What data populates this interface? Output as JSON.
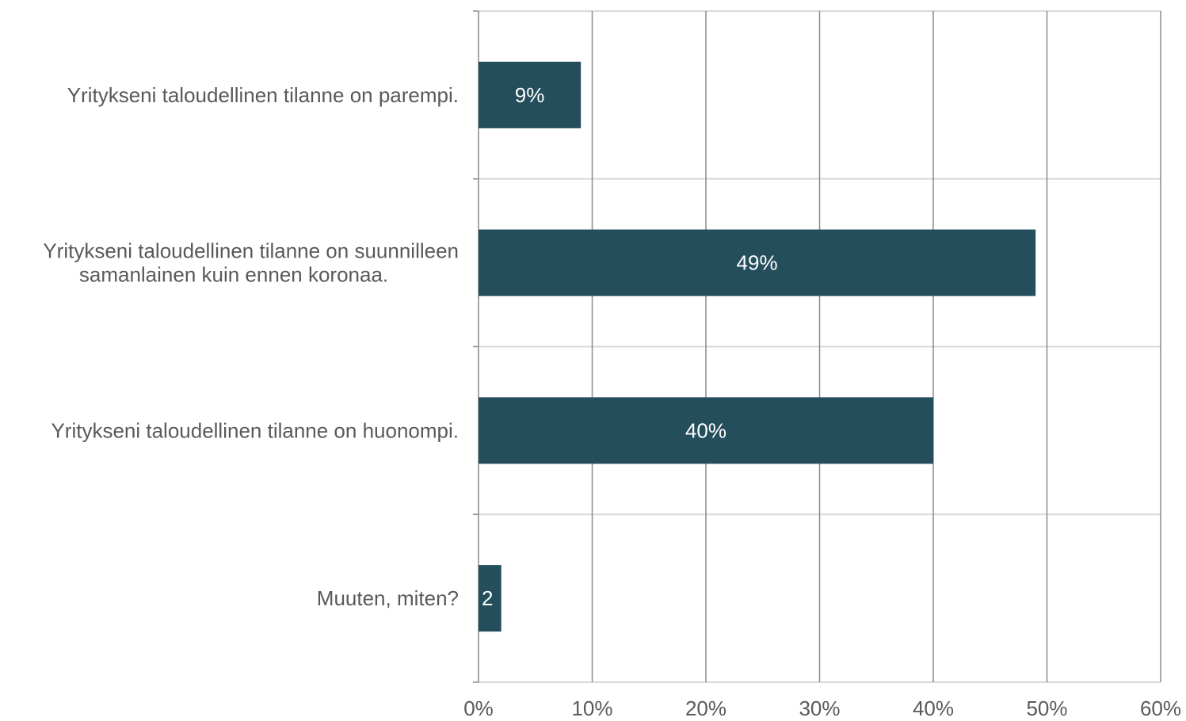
{
  "chart_data": {
    "type": "bar",
    "orientation": "horizontal",
    "categories": [
      [
        "Yritykseni taloudellinen tilanne on parempi."
      ],
      [
        "Yritykseni taloudellinen tilanne on suunnilleen",
        "samanlainen kuin ennen koronaa."
      ],
      [
        "Yritykseni taloudellinen tilanne on huonompi."
      ],
      [
        "Muuten, miten?"
      ]
    ],
    "values": [
      9,
      49,
      40,
      2
    ],
    "data_labels": [
      "9%",
      "49%",
      "40%",
      "2"
    ],
    "xlim": [
      0,
      60
    ],
    "xticks": [
      0,
      10,
      20,
      30,
      40,
      50,
      60
    ],
    "xtick_labels": [
      "0%",
      "10%",
      "20%",
      "30%",
      "40%",
      "50%",
      "60%"
    ],
    "title": "",
    "xlabel": "",
    "ylabel": "",
    "grid": "vertical",
    "legend": "none",
    "colors": {
      "bar": "#244e5c",
      "grid": "#8c8c8c",
      "separator": "#d9d9d9",
      "text": "#595959",
      "data_label": "#ffffff"
    }
  }
}
